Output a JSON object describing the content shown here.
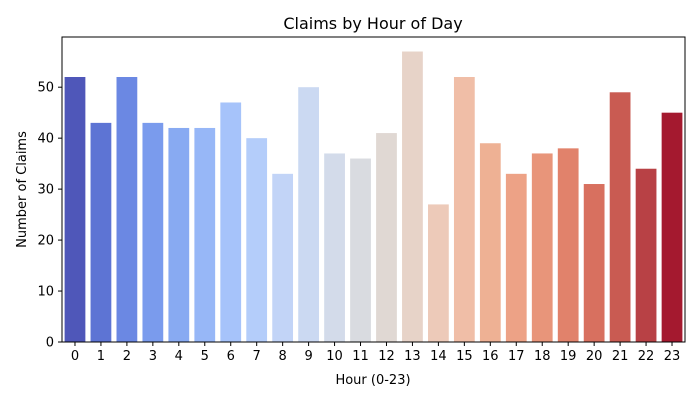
{
  "chart_data": {
    "type": "bar",
    "title": "Claims by Hour of Day",
    "xlabel": "Hour (0-23)",
    "ylabel": "Number of Claims",
    "categories": [
      "0",
      "1",
      "2",
      "3",
      "4",
      "5",
      "6",
      "7",
      "8",
      "9",
      "10",
      "11",
      "12",
      "13",
      "14",
      "15",
      "16",
      "17",
      "18",
      "19",
      "20",
      "21",
      "22",
      "23"
    ],
    "values": [
      52,
      43,
      52,
      43,
      42,
      42,
      47,
      40,
      33,
      50,
      37,
      36,
      41,
      57,
      27,
      52,
      39,
      33,
      37,
      38,
      31,
      49,
      34,
      45
    ],
    "ylim": [
      0,
      59.85
    ],
    "yticks": [
      0,
      10,
      20,
      30,
      40,
      50
    ],
    "grid": false,
    "legend": "none",
    "colormap": "coolwarm",
    "bar_colors": [
      "#4f57b9",
      "#5d74d4",
      "#6b88e3",
      "#7a9bed",
      "#88aaf2",
      "#97b7f7",
      "#a6c3fa",
      "#b4cdfa",
      "#c2d4f7",
      "#cbd9f2",
      "#d3dbea",
      "#d9dbe0",
      "#e0d8d3",
      "#e7d3c8",
      "#edcab9",
      "#f0bea7",
      "#eeb194",
      "#eda286",
      "#e8957a",
      "#e1826b",
      "#d8705f",
      "#c95b52",
      "#b84145",
      "#a4192f"
    ]
  }
}
